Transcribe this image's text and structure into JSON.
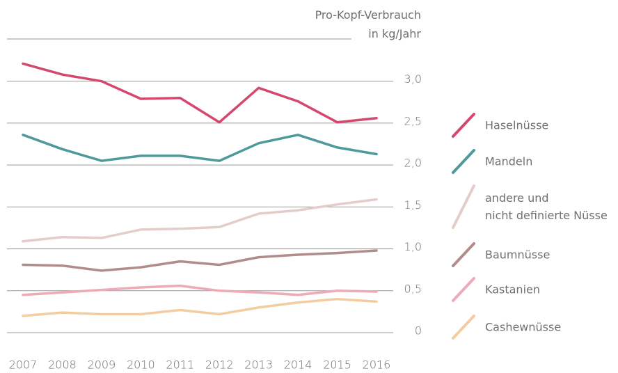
{
  "chart_data": {
    "type": "line",
    "y_label": "Pro-Kopf-Verbrauch\nin kg/Jahr",
    "categories": [
      "2007",
      "2008",
      "2009",
      "2010",
      "2011",
      "2012",
      "2013",
      "2014",
      "2015",
      "2016"
    ],
    "ylim": [
      0,
      3.5
    ],
    "yticks": [
      0,
      {
        "value": 0.5,
        "label": "0,5"
      },
      {
        "value": 1,
        "label": "1,0"
      },
      {
        "value": 1.5,
        "label": "1,5"
      },
      {
        "value": 2,
        "label": "2,0"
      },
      {
        "value": 2.5,
        "label": "2,5"
      },
      {
        "value": 3,
        "label": "3,0"
      }
    ],
    "grid": true,
    "legend": "right",
    "series": [
      {
        "name": "Haselnüsse",
        "color": "#d6476e",
        "values": [
          3.21,
          3.08,
          3.0,
          2.79,
          2.8,
          2.51,
          2.92,
          2.76,
          2.51,
          2.56
        ]
      },
      {
        "name": "Mandeln",
        "color": "#4e9a9b",
        "values": [
          2.36,
          2.19,
          2.05,
          2.11,
          2.11,
          2.05,
          2.26,
          2.36,
          2.21,
          2.13
        ]
      },
      {
        "name": "andere und\nnicht definierte Nüsse",
        "color": "#e3cdca",
        "values": [
          1.09,
          1.14,
          1.13,
          1.23,
          1.24,
          1.26,
          1.42,
          1.46,
          1.53,
          1.59
        ]
      },
      {
        "name": "Baumnüsse",
        "color": "#b08c8d",
        "values": [
          0.81,
          0.8,
          0.74,
          0.78,
          0.85,
          0.81,
          0.9,
          0.93,
          0.95,
          0.98
        ]
      },
      {
        "name": "Kastanien",
        "color": "#eeaab6",
        "values": [
          0.45,
          0.48,
          0.51,
          0.54,
          0.56,
          0.5,
          0.48,
          0.45,
          0.5,
          0.49
        ]
      },
      {
        "name": "Cashewnüsse",
        "color": "#f3cda0",
        "values": [
          0.2,
          0.24,
          0.22,
          0.22,
          0.27,
          0.22,
          0.3,
          0.36,
          0.4,
          0.37
        ]
      }
    ]
  }
}
